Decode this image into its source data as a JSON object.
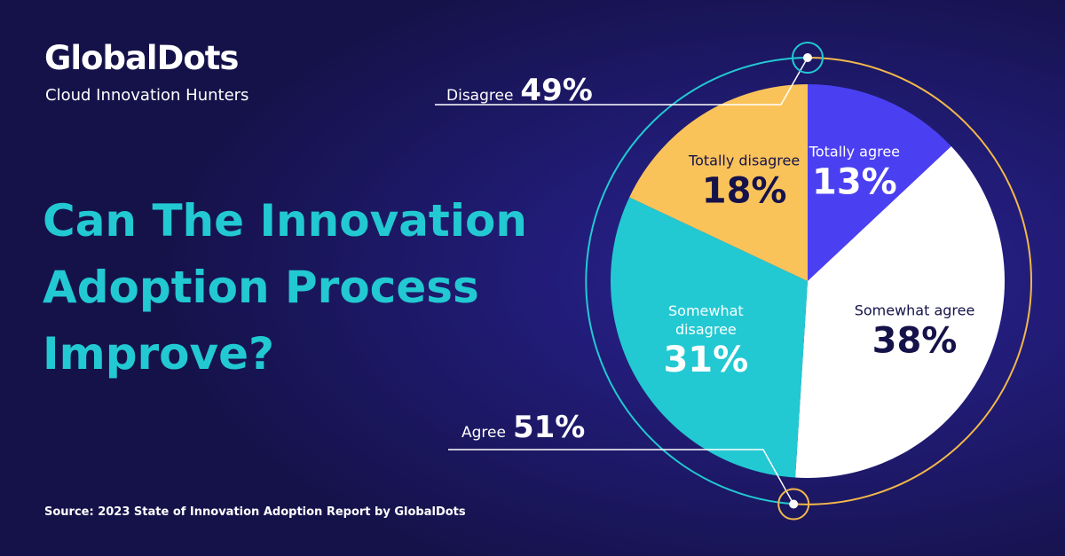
{
  "brand": {
    "name": "GlobalDots",
    "tagline": "Cloud Innovation Hunters"
  },
  "chart_data": {
    "type": "pie",
    "title": "Can The Innovation Adoption Process Improve?",
    "categories": [
      "Totally agree",
      "Somewhat agree",
      "Somewhat disagree",
      "Totally disagree"
    ],
    "values": [
      13,
      38,
      31,
      18
    ],
    "value_labels": [
      "13%",
      "38%",
      "31%",
      "18%"
    ],
    "colors": [
      "#4b3ff2",
      "#ffffff",
      "#22c9d2",
      "#fac35a"
    ],
    "groups": [
      {
        "name": "Disagree",
        "value": 49,
        "label": "49%"
      },
      {
        "name": "Agree",
        "value": 51,
        "label": "51%"
      }
    ],
    "source": "Source: 2023 State of Innovation Adoption Report by GlobalDots"
  }
}
